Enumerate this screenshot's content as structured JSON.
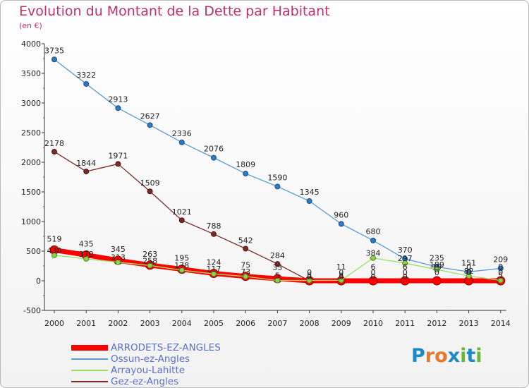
{
  "chart_data": {
    "type": "line",
    "title": "Evolution du Montant de la Dette par Habitant",
    "subtitle": "(en €)",
    "x": [
      "2000",
      "2001",
      "2002",
      "2003",
      "2004",
      "2005",
      "2006",
      "2007",
      "2008",
      "2009",
      "2010",
      "2011",
      "2012",
      "2013",
      "2014"
    ],
    "ylim": [
      -500,
      4000
    ],
    "yticks": [
      -500,
      0,
      500,
      1000,
      1500,
      2000,
      2500,
      3000,
      3500,
      4000
    ],
    "grid": false,
    "legend_position": "bottom-left",
    "series": [
      {
        "name": "ARRODETS-EZ-ANGLES",
        "color": "#ff0000",
        "values": [
          519,
          435,
          345,
          263,
          195,
          124,
          75,
          35,
          0,
          0,
          0,
          0,
          0,
          0,
          0
        ],
        "labels": [
          "519",
          "435",
          "345",
          "263",
          "195",
          "124",
          "75",
          "35",
          "",
          "",
          "",
          "",
          "",
          "",
          ""
        ]
      },
      {
        "name": "Ossun-ez-Angles",
        "color": "#5b9bd5",
        "values": [
          3735,
          3322,
          2913,
          2627,
          2336,
          2076,
          1809,
          1590,
          1345,
          960,
          680,
          370,
          235,
          151,
          209
        ],
        "labels": [
          "3735",
          "3322",
          "2913",
          "2627",
          "2336",
          "2076",
          "1809",
          "1590",
          "1345",
          "960",
          "680",
          "370",
          "235",
          "151",
          "209"
        ]
      },
      {
        "name": "Arrayou-Lahitte",
        "color": "#99e066",
        "values": [
          430,
          370,
          313,
          258,
          178,
          117,
          73,
          5,
          5,
          8,
          384,
          297,
          189,
          82,
          5
        ],
        "labels": [
          "430",
          "370",
          "313",
          "258",
          "178",
          "117",
          "73",
          "5",
          "5",
          "8",
          "384",
          "297",
          "189",
          "82",
          "5"
        ]
      },
      {
        "name": "Gez-ez-Angles",
        "color": "#7b2a2a",
        "values": [
          2178,
          1844,
          1971,
          1509,
          1021,
          788,
          542,
          284,
          0,
          0,
          0,
          0,
          0,
          0,
          0
        ],
        "labels": [
          "2178",
          "1844",
          "1971",
          "1509",
          "1021",
          "788",
          "542",
          "284",
          "0",
          "0",
          "0",
          "0",
          "0",
          "0",
          "0"
        ]
      }
    ]
  },
  "extra_labels": [
    "0",
    "11",
    "6",
    "6",
    "19",
    "0",
    "0",
    "0",
    "0",
    "0"
  ],
  "logo": {
    "text": "Proxiti",
    "letters": [
      "P",
      "r",
      "o",
      "x",
      "i",
      "t",
      "i"
    ],
    "colors": [
      "#1f88c9",
      "#e8762b",
      "#e8762b",
      "#1f88c9",
      "#6cb33f",
      "#1f88c9",
      "#6cb33f"
    ]
  }
}
